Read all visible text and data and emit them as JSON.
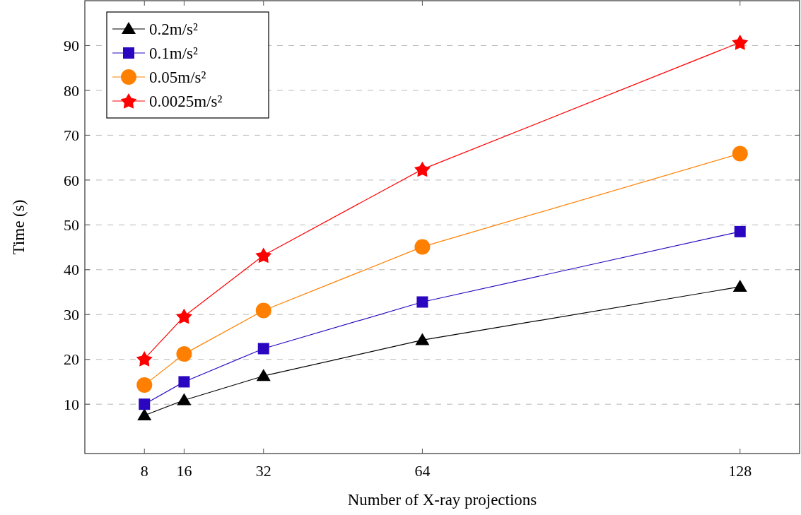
{
  "chart_data": {
    "type": "line",
    "xlabel": "Number of X-ray projections",
    "ylabel": "Time (s)",
    "x": [
      8,
      16,
      32,
      64,
      128
    ],
    "series": [
      {
        "name": "0.2m/s²",
        "color": "#000000",
        "marker": "triangle",
        "values": [
          7.5,
          10.9,
          16.3,
          24.3,
          36.2
        ]
      },
      {
        "name": "0.1m/s²",
        "color": "#2a06c0",
        "marker": "square",
        "values": [
          10.0,
          15.0,
          22.4,
          32.8,
          48.5
        ]
      },
      {
        "name": "0.05m/s²",
        "color": "#ff8000",
        "marker": "circle",
        "values": [
          14.3,
          21.2,
          30.9,
          45.1,
          65.9
        ]
      },
      {
        "name": "0.0025m/s²",
        "color": "#ff0000",
        "marker": "star",
        "values": [
          20.1,
          29.6,
          43.2,
          62.4,
          90.7
        ]
      }
    ],
    "xlim": [
      -4,
      140
    ],
    "xticks": [
      8,
      16,
      32,
      64,
      128
    ],
    "ylim": [
      -1,
      100
    ],
    "yticks": [
      10,
      20,
      30,
      40,
      50,
      60,
      70,
      80,
      90
    ],
    "grid": "y",
    "legend": "top left"
  }
}
